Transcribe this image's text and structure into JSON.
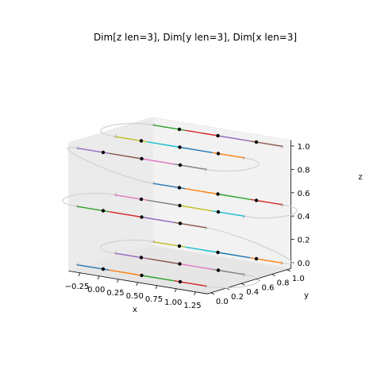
{
  "chart_data": {
    "type": "line",
    "projection": "3d",
    "title": "Dim[z len=3], Dim[y len=3], Dim[x len=3]",
    "xlabel": "x",
    "ylabel": "y",
    "zlabel": "z",
    "x_ticks": [
      "−0.25",
      "0.00",
      "0.25",
      "0.50",
      "0.75",
      "1.00",
      "1.25"
    ],
    "y_ticks": [
      "0.0",
      "0.2",
      "0.4",
      "0.6",
      "0.8",
      "1.0"
    ],
    "z_ticks": [
      "0.0",
      "0.2",
      "0.4",
      "0.6",
      "0.8",
      "1.0"
    ],
    "xlim": [
      -0.4,
      1.4
    ],
    "ylim": [
      -0.05,
      1.05
    ],
    "zlim": [
      -0.05,
      1.05
    ],
    "grid": false,
    "points_x": [
      0,
      0.5,
      1
    ],
    "points_y": [
      0,
      0.5,
      1
    ],
    "points_z": [
      0,
      0.5,
      1
    ],
    "segment_colors": [
      "#1f77b4",
      "#ff7f0e",
      "#2ca02c",
      "#d62728",
      "#9467bd",
      "#8c564b",
      "#e377c2",
      "#7f7f7f",
      "#bcbd22",
      "#17becf"
    ],
    "path_color": "#d3d3d3"
  }
}
